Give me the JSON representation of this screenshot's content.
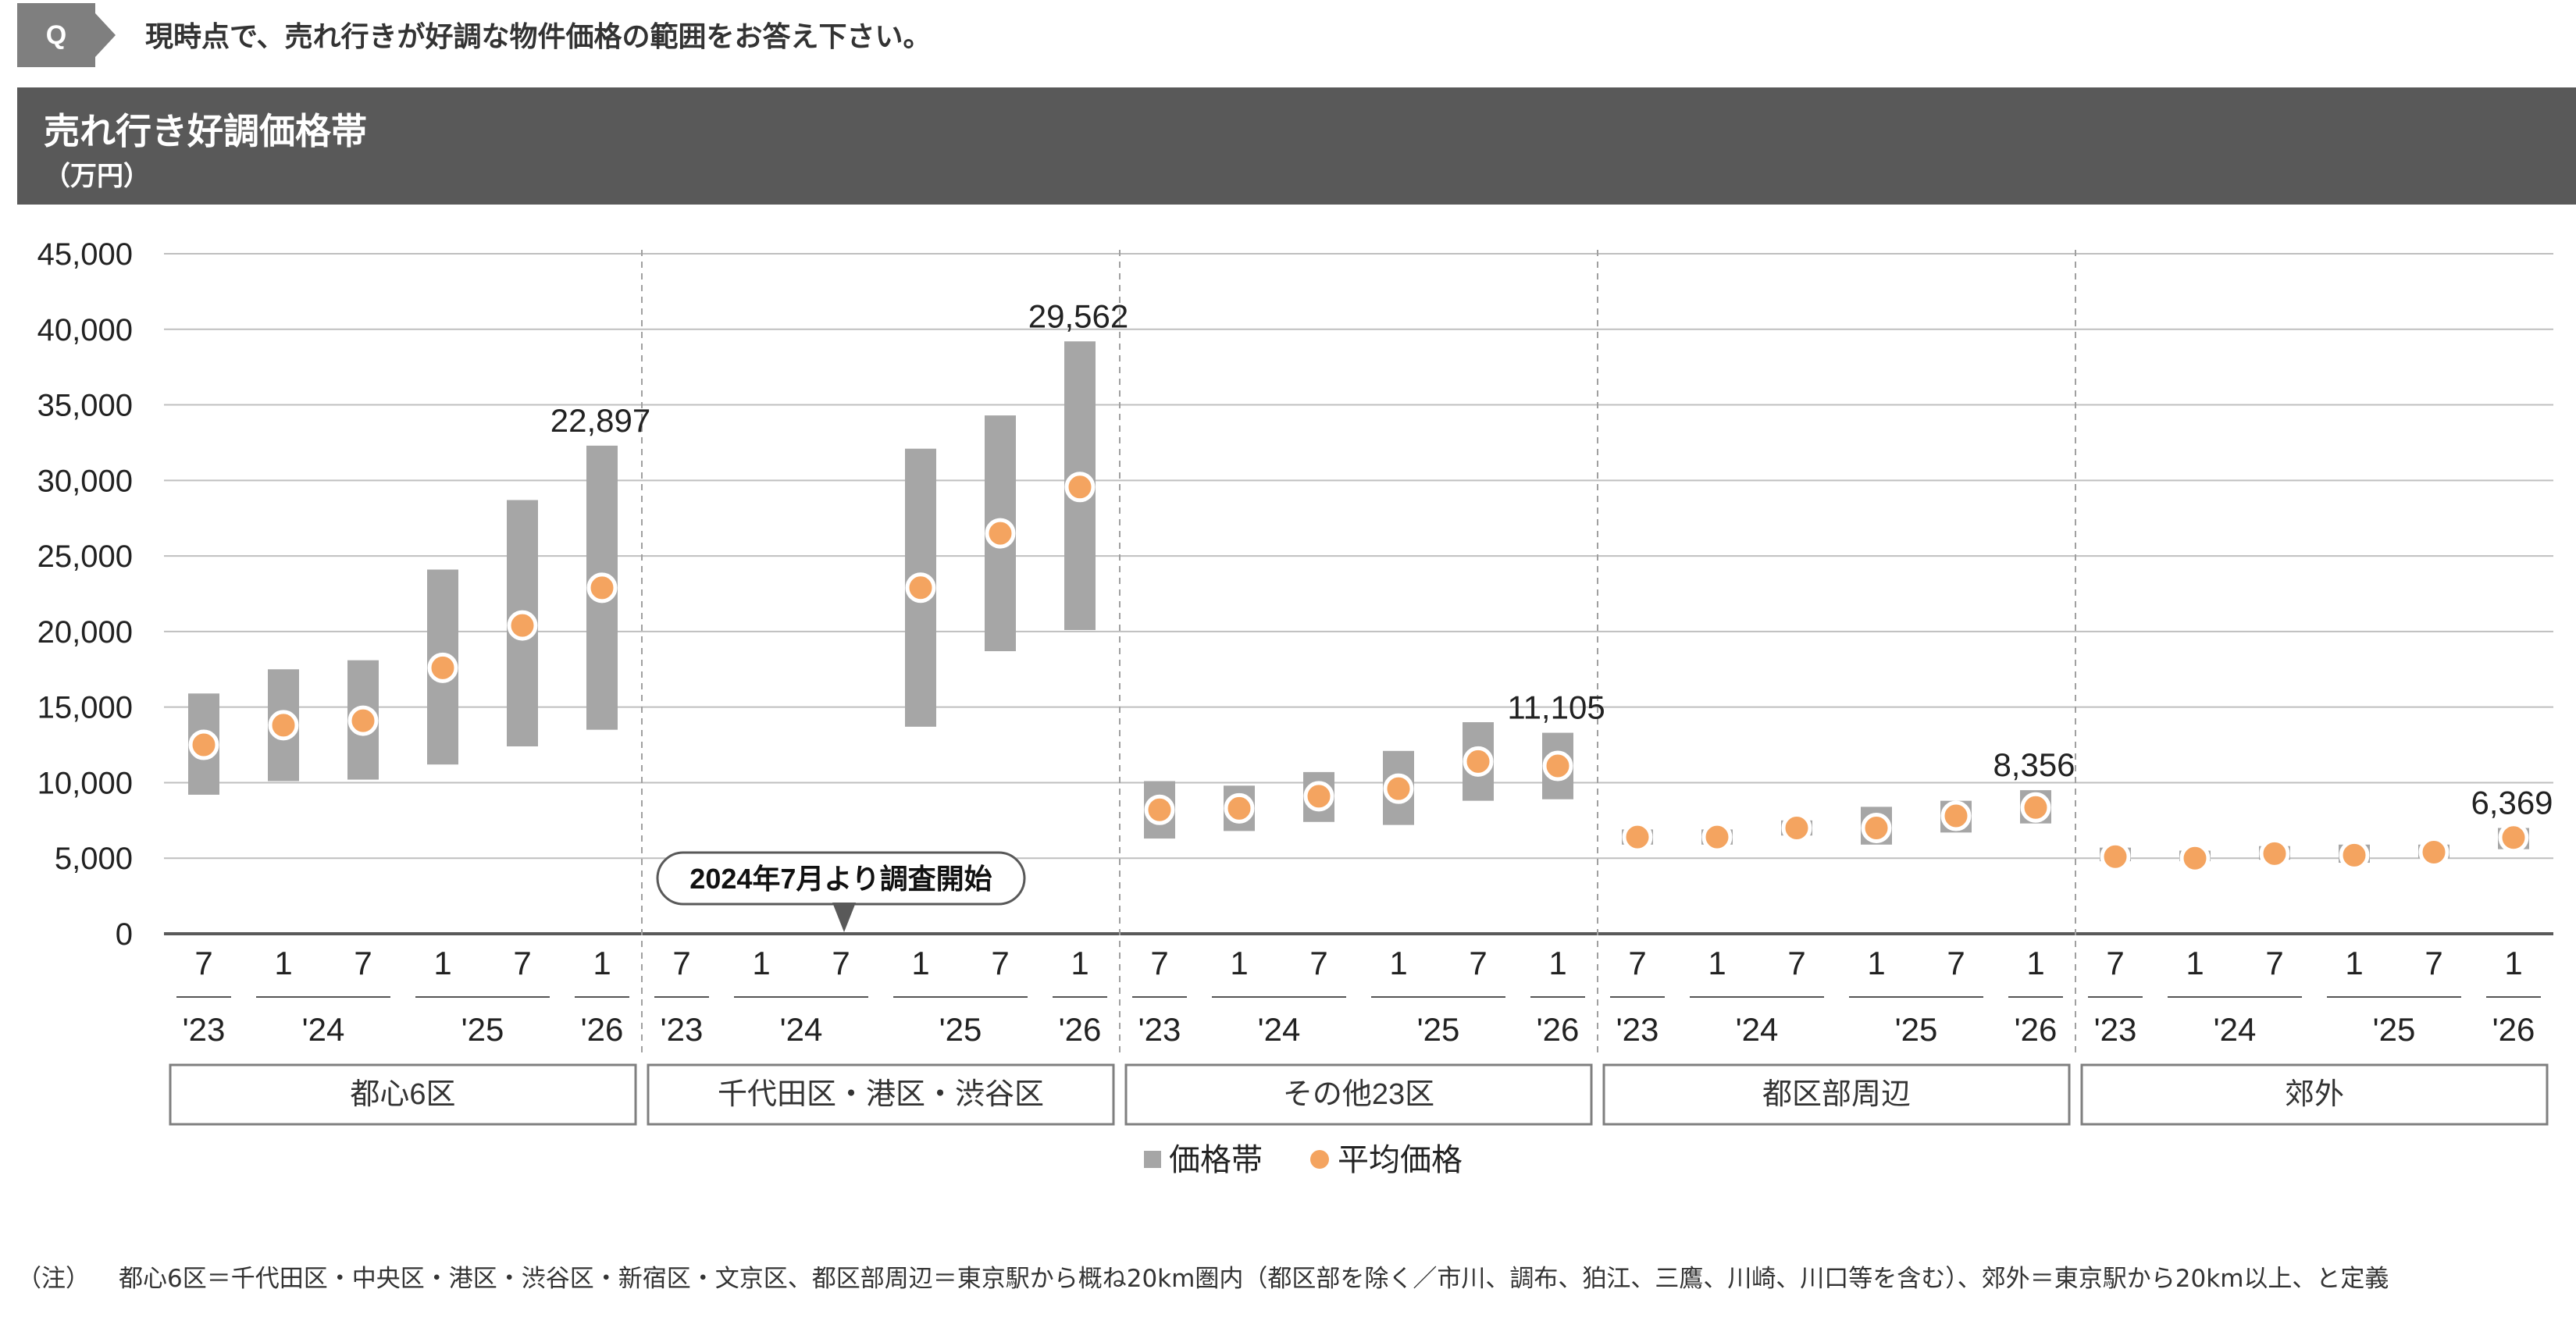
{
  "question": {
    "badge": "Q",
    "text": "現時点で、売れ行きが好調な物件価格の範囲をお答え下さい。"
  },
  "header": {
    "title": "売れ行き好調価格帯",
    "unit": "（万円）"
  },
  "callout": "2024年7月より調査開始",
  "footnote": {
    "label": "（注）",
    "text": "都心6区＝千代田区・中央区・港区・渋谷区・新宿区・文京区、都区部周辺＝東京駅から概ね20km圏内（都区部を除く／市川、調布、狛江、三鷹、川崎、川口等を含む）、郊外＝東京駅から20km以上、と定義"
  },
  "colors": {
    "band": "#a6a6a6",
    "avg": "#f4a460",
    "grid": "#bfbfbf",
    "axis": "#595959"
  },
  "chart_data": {
    "type": "bar",
    "ylim": [
      0,
      45000
    ],
    "yticks": [
      "0",
      "5,000",
      "10,000",
      "15,000",
      "20,000",
      "25,000",
      "30,000",
      "35,000",
      "40,000",
      "45,000"
    ],
    "period_months": [
      "7",
      "1",
      "7",
      "1",
      "7",
      "1"
    ],
    "year_labels": [
      {
        "label": "'23",
        "span": [
          0,
          0
        ]
      },
      {
        "label": "'24",
        "span": [
          1,
          2
        ]
      },
      {
        "label": "'25",
        "span": [
          3,
          4
        ]
      },
      {
        "label": "'26",
        "span": [
          5,
          5
        ]
      }
    ],
    "legend": [
      {
        "name": "価格帯",
        "marker": "square",
        "color": "#a6a6a6"
      },
      {
        "name": "平均価格",
        "marker": "circle",
        "color": "#f4a460"
      }
    ],
    "groups": [
      {
        "name": "都心6区",
        "band_low": [
          9200,
          10100,
          10200,
          11200,
          12400,
          13500
        ],
        "band_high": [
          15900,
          17500,
          18100,
          24100,
          28700,
          32300
        ],
        "average": [
          12500,
          13800,
          14100,
          17600,
          20400,
          22897
        ],
        "label": "22,897"
      },
      {
        "name": "千代田区・港区・渋谷区",
        "band_low": [
          null,
          null,
          null,
          13700,
          18700,
          20100
        ],
        "band_high": [
          null,
          null,
          null,
          32100,
          34300,
          39200
        ],
        "average": [
          null,
          null,
          null,
          22900,
          26500,
          29562
        ],
        "label": "29,562"
      },
      {
        "name": "その他23区",
        "band_low": [
          6300,
          6800,
          7400,
          7200,
          8800,
          8900
        ],
        "band_high": [
          10100,
          9800,
          10700,
          12100,
          14000,
          13300
        ],
        "average": [
          8200,
          8300,
          9100,
          9600,
          11400,
          11105
        ],
        "label": "11,105"
      },
      {
        "name": "都区部周辺",
        "band_low": [
          5900,
          5900,
          6500,
          5900,
          6700,
          7300
        ],
        "band_high": [
          6900,
          6900,
          7500,
          8400,
          8800,
          9500
        ],
        "average": [
          6400,
          6400,
          7000,
          7000,
          7800,
          8356
        ],
        "label": "8,356"
      },
      {
        "name": "郊外",
        "band_low": [
          4800,
          4800,
          4900,
          4700,
          5000,
          5600
        ],
        "band_high": [
          5700,
          5500,
          5800,
          5900,
          5900,
          7000
        ],
        "average": [
          5100,
          5000,
          5300,
          5200,
          5400,
          6369
        ],
        "label": "6,369"
      }
    ]
  }
}
